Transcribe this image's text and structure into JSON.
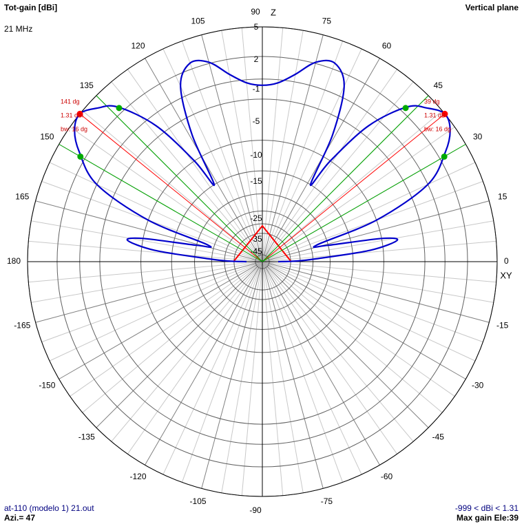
{
  "header": {
    "top_left_title": "Tot-gain [dBi]",
    "top_left_freq": "21 MHz",
    "top_right_title": "Vertical plane"
  },
  "footer": {
    "file": "at-110 (modelo 1) 21.out",
    "azimuth": "Azi.= 47",
    "range": "-999 < dBi < 1.31",
    "max_gain": "Max gain Ele:39"
  },
  "axis_labels": {
    "z": "Z",
    "xy": "XY"
  },
  "colors": {
    "pattern": "#0000cc",
    "max_marker": "#ff0000",
    "bw_marker": "#00aa00",
    "grid": "#c8c8c8",
    "ring": "#606060"
  },
  "chart_data": {
    "type": "polar",
    "plane": "vertical",
    "radial_labels_dbi": [
      "5",
      "2",
      "-1",
      "-5",
      "-10",
      "-15",
      "-25",
      "-35",
      "-45"
    ],
    "angle_labels": [
      {
        "deg": 0,
        "text": "0"
      },
      {
        "deg": 15,
        "text": "15"
      },
      {
        "deg": 30,
        "text": "30"
      },
      {
        "deg": 45,
        "text": "45"
      },
      {
        "deg": 60,
        "text": "60"
      },
      {
        "deg": 75,
        "text": "75"
      },
      {
        "deg": 90,
        "text": "90"
      },
      {
        "deg": 105,
        "text": "105"
      },
      {
        "deg": 120,
        "text": "120"
      },
      {
        "deg": 135,
        "text": "135"
      },
      {
        "deg": 150,
        "text": "150"
      },
      {
        "deg": 165,
        "text": "165"
      },
      {
        "deg": 180,
        "text": "180"
      },
      {
        "deg": -165,
        "text": "-165"
      },
      {
        "deg": -150,
        "text": "-150"
      },
      {
        "deg": -135,
        "text": "-135"
      },
      {
        "deg": -120,
        "text": "-120"
      },
      {
        "deg": -105,
        "text": "-105"
      },
      {
        "deg": -90,
        "text": "-90"
      },
      {
        "deg": -75,
        "text": "-75"
      },
      {
        "deg": -60,
        "text": "-60"
      },
      {
        "deg": -45,
        "text": "-45"
      },
      {
        "deg": -30,
        "text": "-30"
      },
      {
        "deg": -15,
        "text": "-15"
      }
    ],
    "max_gain_dbi": 1.31,
    "max_gain_elevation_deg": 39,
    "beamwidth_deg": 16,
    "beam_annotations": [
      {
        "side": "right",
        "angle": "39 dg",
        "gain": "1.31 dBi",
        "bw": "bw: 16 dg"
      },
      {
        "side": "left",
        "angle": "141 dg",
        "gain": "1.31 dBi",
        "bw": "bw: 16 dg"
      }
    ],
    "pattern_points": [
      {
        "elev": 0,
        "gain": -45
      },
      {
        "elev": 1,
        "gain": -32
      },
      {
        "elev": 3,
        "gain": -24
      },
      {
        "elev": 6,
        "gain": -12
      },
      {
        "elev": 9,
        "gain": -8
      },
      {
        "elev": 11,
        "gain": -10
      },
      {
        "elev": 14,
        "gain": -20
      },
      {
        "elev": 17,
        "gain": -23
      },
      {
        "elev": 20,
        "gain": -10
      },
      {
        "elev": 25,
        "gain": -3
      },
      {
        "elev": 31,
        "gain": -0.3
      },
      {
        "elev": 35,
        "gain": 0.9
      },
      {
        "elev": 39,
        "gain": 1.31
      },
      {
        "elev": 43,
        "gain": 0.6
      },
      {
        "elev": 47,
        "gain": -0.5
      },
      {
        "elev": 52,
        "gain": -4
      },
      {
        "elev": 56,
        "gain": -10
      },
      {
        "elev": 58,
        "gain": -15
      },
      {
        "elev": 61,
        "gain": -7
      },
      {
        "elev": 65,
        "gain": -2
      },
      {
        "elev": 70,
        "gain": -0.5
      },
      {
        "elev": 75,
        "gain": -0.9
      },
      {
        "elev": 80,
        "gain": -2.3
      },
      {
        "elev": 85,
        "gain": -3.3
      },
      {
        "elev": 90,
        "gain": -3.6
      }
    ],
    "red_triangle": [
      {
        "elev": 0,
        "gain": -38
      },
      {
        "elev": 90,
        "gain": -27
      }
    ]
  }
}
